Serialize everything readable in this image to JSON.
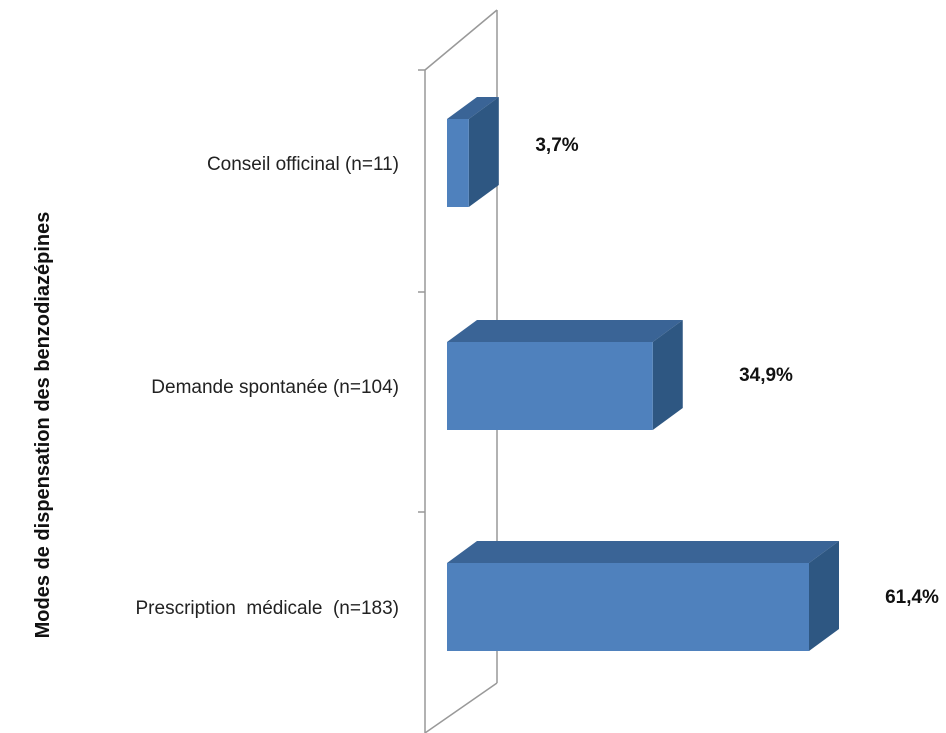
{
  "chart_data": {
    "type": "bar",
    "orientation": "horizontal",
    "three_d": true,
    "categories": [
      "Conseil officinal (n=11)",
      "Demande spontanée (n=104)",
      "Prescription  médicale  (n=183)"
    ],
    "values": [
      3.7,
      34.9,
      61.4
    ],
    "value_labels": [
      "3,7%",
      "34,9%",
      "61,4%"
    ],
    "title": "",
    "xlabel": "",
    "ylabel": "Modes de dispensation des benzodiazépines",
    "xlim": [
      0,
      61.4
    ],
    "grid": false,
    "legend": "none",
    "colors": {
      "bar_front": "#4f81bd",
      "bar_top": "#3a6496",
      "bar_side": "#2e5782",
      "axis_wall": "#999999"
    }
  }
}
